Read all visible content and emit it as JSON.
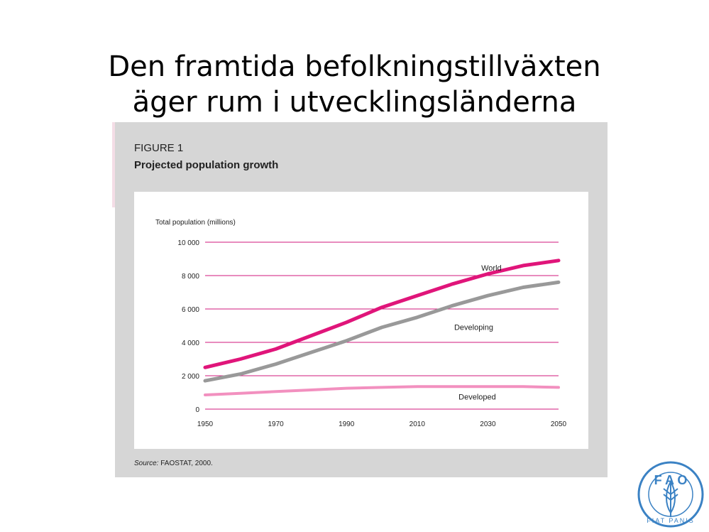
{
  "slide": {
    "title_line1": "Den framtida befolkningstillväxten",
    "title_line2": "äger rum i utvecklingsländerna"
  },
  "figure": {
    "number": "FIGURE 1",
    "title": "Projected population growth",
    "source_label": "Source:",
    "source_text": " FAOSTAT, 2000."
  },
  "logo": {
    "letters": [
      "F",
      "A",
      "O"
    ],
    "motto": "FIAT PANIS"
  },
  "colors": {
    "world": "#e0157a",
    "developing": "#999999",
    "developed": "#f290bf",
    "grid": "#d0197c"
  },
  "chart_data": {
    "type": "line",
    "ylabel": "Total population (millions)",
    "xlabel": "",
    "ylim": [
      0,
      10000
    ],
    "xlim": [
      1950,
      2050
    ],
    "yticks": [
      0,
      2000,
      4000,
      6000,
      8000,
      10000
    ],
    "ytick_labels": [
      "0",
      "2 000",
      "4 000",
      "6 000",
      "8 000",
      "10 000"
    ],
    "xticks": [
      1950,
      1970,
      1990,
      2010,
      2030,
      2050
    ],
    "xtick_labels": [
      "1950",
      "1970",
      "1990",
      "2010",
      "2030",
      "2050"
    ],
    "grid": true,
    "x": [
      1950,
      1960,
      1970,
      1980,
      1990,
      2000,
      2010,
      2020,
      2030,
      2040,
      2050
    ],
    "series": [
      {
        "name": "World",
        "values": [
          2500,
          3000,
          3600,
          4400,
          5200,
          6100,
          6800,
          7500,
          8100,
          8600,
          8900
        ]
      },
      {
        "name": "Developing",
        "values": [
          1700,
          2100,
          2700,
          3400,
          4100,
          4900,
          5500,
          6200,
          6800,
          7300,
          7600
        ]
      },
      {
        "name": "Developed",
        "values": [
          850,
          950,
          1050,
          1150,
          1250,
          1300,
          1350,
          1350,
          1350,
          1350,
          1300
        ]
      }
    ]
  }
}
